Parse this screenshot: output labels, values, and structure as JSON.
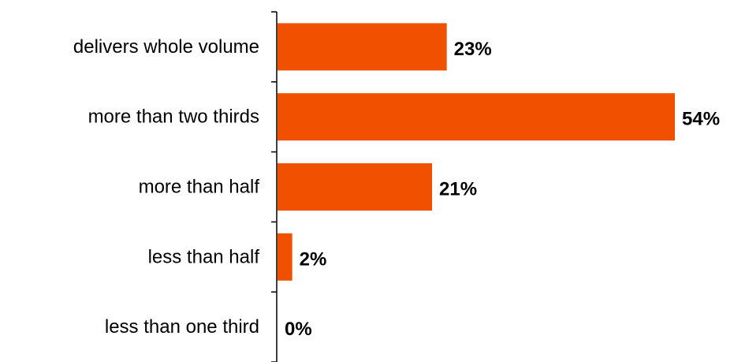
{
  "chart_data": {
    "type": "bar",
    "orientation": "horizontal",
    "categories": [
      "delivers whole volume",
      "more than two thirds",
      "more than half",
      "less than half",
      "less than one third"
    ],
    "values": [
      23,
      54,
      21,
      2,
      0
    ],
    "value_labels": [
      "23%",
      "54%",
      "21%",
      "2%",
      "0%"
    ],
    "title": "",
    "xlabel": "",
    "ylabel": "",
    "xlim": [
      0,
      54
    ],
    "grid": false,
    "legend": "none",
    "bar_color": "#F05000"
  }
}
